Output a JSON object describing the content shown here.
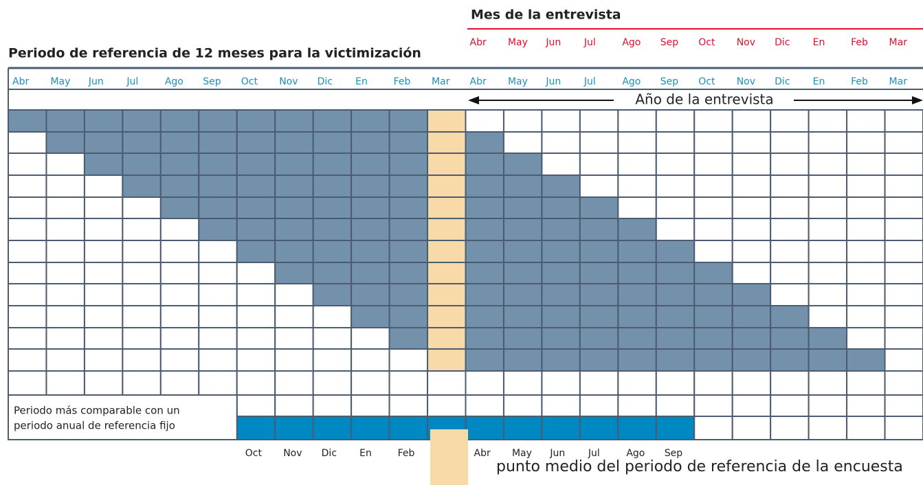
{
  "header": {
    "interview_title": "Mes de la entrevista",
    "reference_title": "Periodo de referencia de 12 meses para la victimización"
  },
  "months": [
    "Abr",
    "May",
    "Jun",
    "Jul",
    "Ago",
    "Sep",
    "Oct",
    "Nov",
    "Dic",
    "En",
    "Feb",
    "Mar"
  ],
  "interview_year": "Año de la entrevista",
  "note": [
    "Periodo más comparable con un",
    "periodo anual de referencia fijo"
  ],
  "legend": "punto medio del periodo de referencia de la encuesta"
}
